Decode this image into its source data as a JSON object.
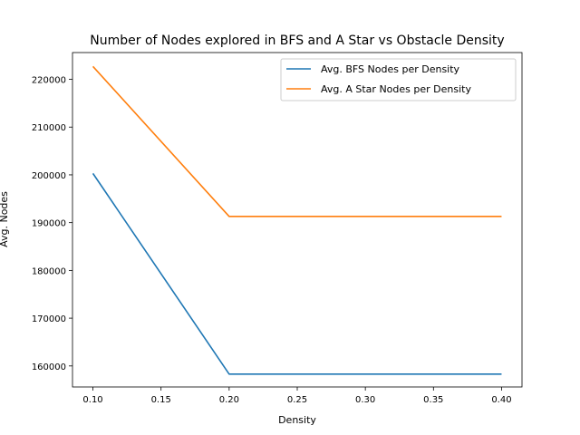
{
  "chart_data": {
    "type": "line",
    "title": "Number of Nodes explored in BFS and A Star vs Obstacle Density",
    "xlabel": "Density",
    "ylabel": "Avg. Nodes",
    "x": [
      0.1,
      0.2,
      0.3,
      0.4
    ],
    "x_ticks": [
      0.1,
      0.15,
      0.2,
      0.25,
      0.3,
      0.35,
      0.4
    ],
    "x_tick_labels": [
      "0.10",
      "0.15",
      "0.20",
      "0.25",
      "0.30",
      "0.35",
      "0.40"
    ],
    "y_ticks": [
      160000,
      170000,
      180000,
      190000,
      200000,
      210000,
      220000
    ],
    "y_tick_labels": [
      "160000",
      "170000",
      "180000",
      "190000",
      "200000",
      "210000",
      "220000"
    ],
    "xlim": [
      0.085,
      0.415
    ],
    "ylim": [
      155600,
      225600
    ],
    "grid": false,
    "legend_position": "top-right",
    "series": [
      {
        "name": "Avg. BFS Nodes per Density",
        "color": "#1f77b4",
        "values": [
          200300,
          158300,
          158300,
          158300
        ]
      },
      {
        "name": "Avg. A Star Nodes per Density",
        "color": "#ff7f0e",
        "values": [
          222700,
          191300,
          191300,
          191300
        ]
      }
    ]
  }
}
